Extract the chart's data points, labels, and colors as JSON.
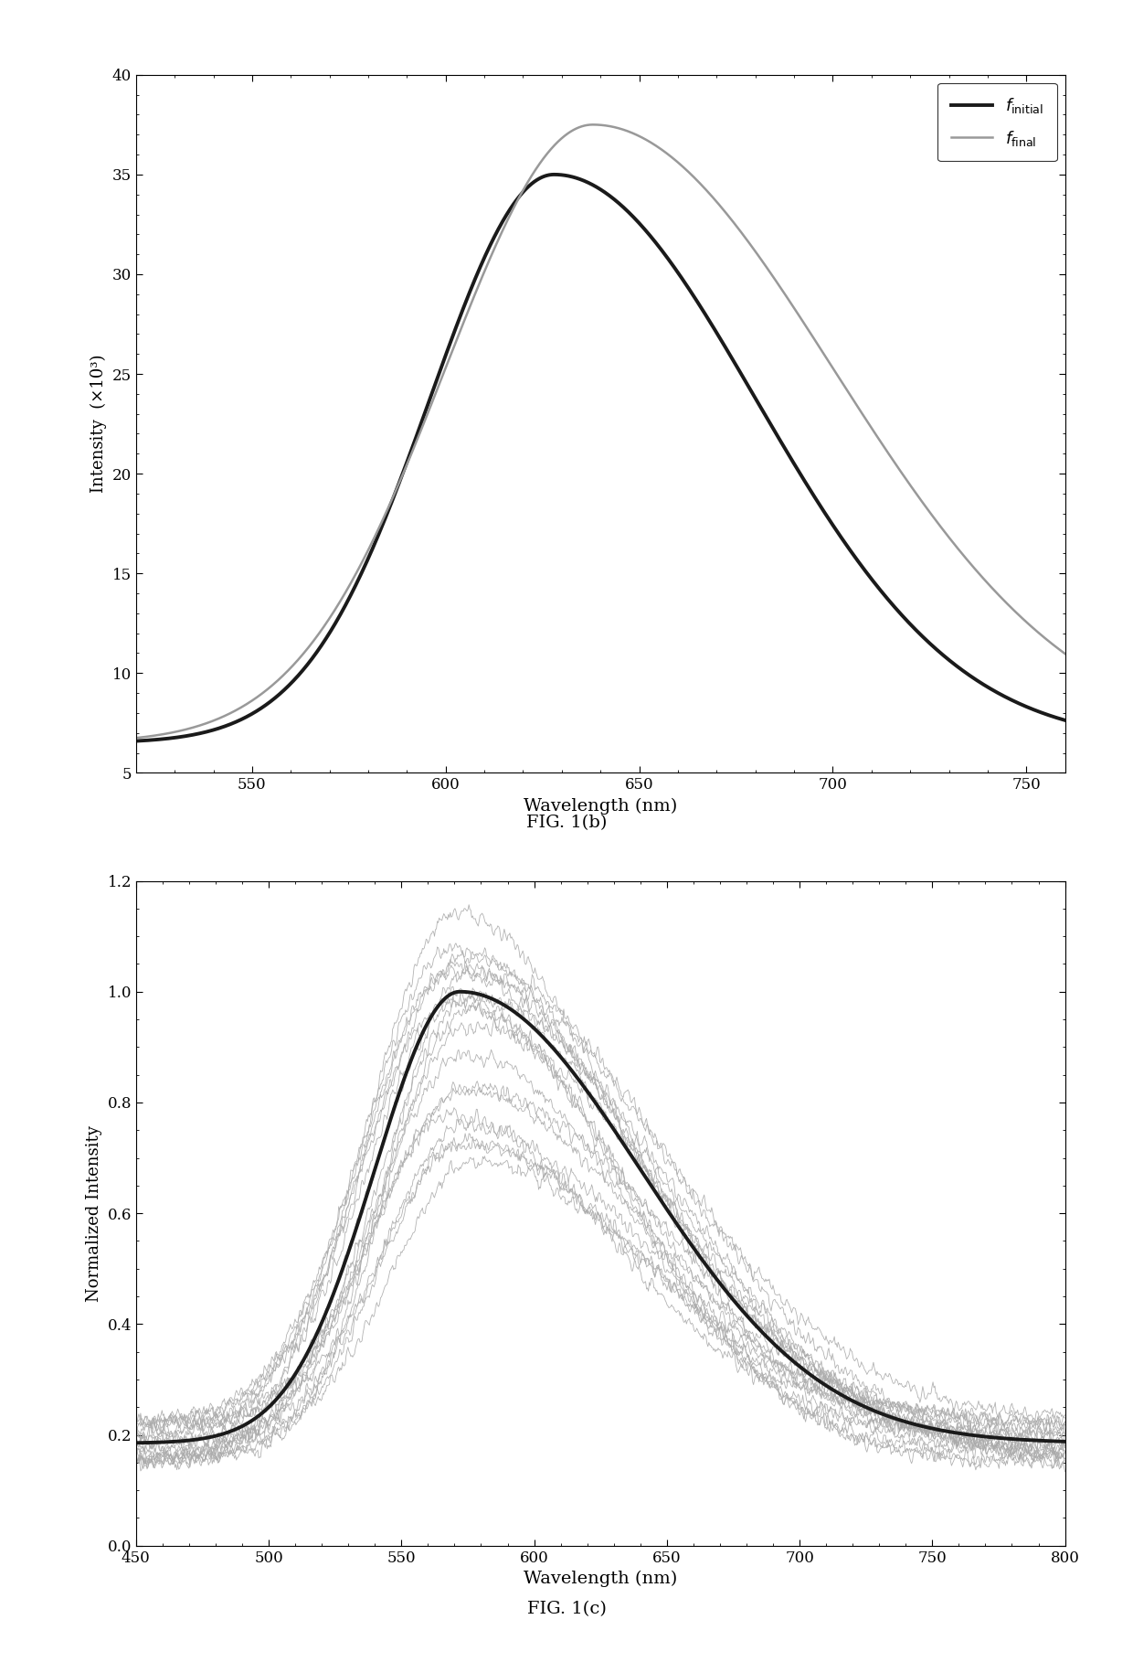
{
  "fig1b": {
    "title": "FIG. 1(b)",
    "xlabel": "Wavelength (nm)",
    "ylabel": "Intensity  (×10³)",
    "xlim": [
      520,
      760
    ],
    "ylim": [
      5,
      40
    ],
    "yticks": [
      5,
      10,
      15,
      20,
      25,
      30,
      35,
      40
    ],
    "xticks": [
      550,
      600,
      650,
      700,
      750
    ],
    "color_initial": "#1a1a1a",
    "color_final": "#999999",
    "lw_initial": 2.8,
    "lw_final": 1.8,
    "legend_initial": "$f_{\\mathrm{initial}}$",
    "legend_final": "$f_{\\mathrm{final}}$"
  },
  "fig1c": {
    "title": "FIG. 1(c)",
    "xlabel": "Wavelength (nm)",
    "ylabel": "Normalized Intensity",
    "xlim": [
      450,
      800
    ],
    "ylim": [
      0.0,
      1.2
    ],
    "yticks": [
      0.0,
      0.2,
      0.4,
      0.6,
      0.8,
      1.0,
      1.2
    ],
    "xticks": [
      450,
      500,
      550,
      600,
      650,
      700,
      750,
      800
    ],
    "color_main": "#1a1a1a",
    "color_scatter": "#aaaaaa",
    "lw_main": 2.8,
    "lw_scatter": 0.6,
    "n_scatter_curves": 20
  },
  "background_color": "#ffffff"
}
